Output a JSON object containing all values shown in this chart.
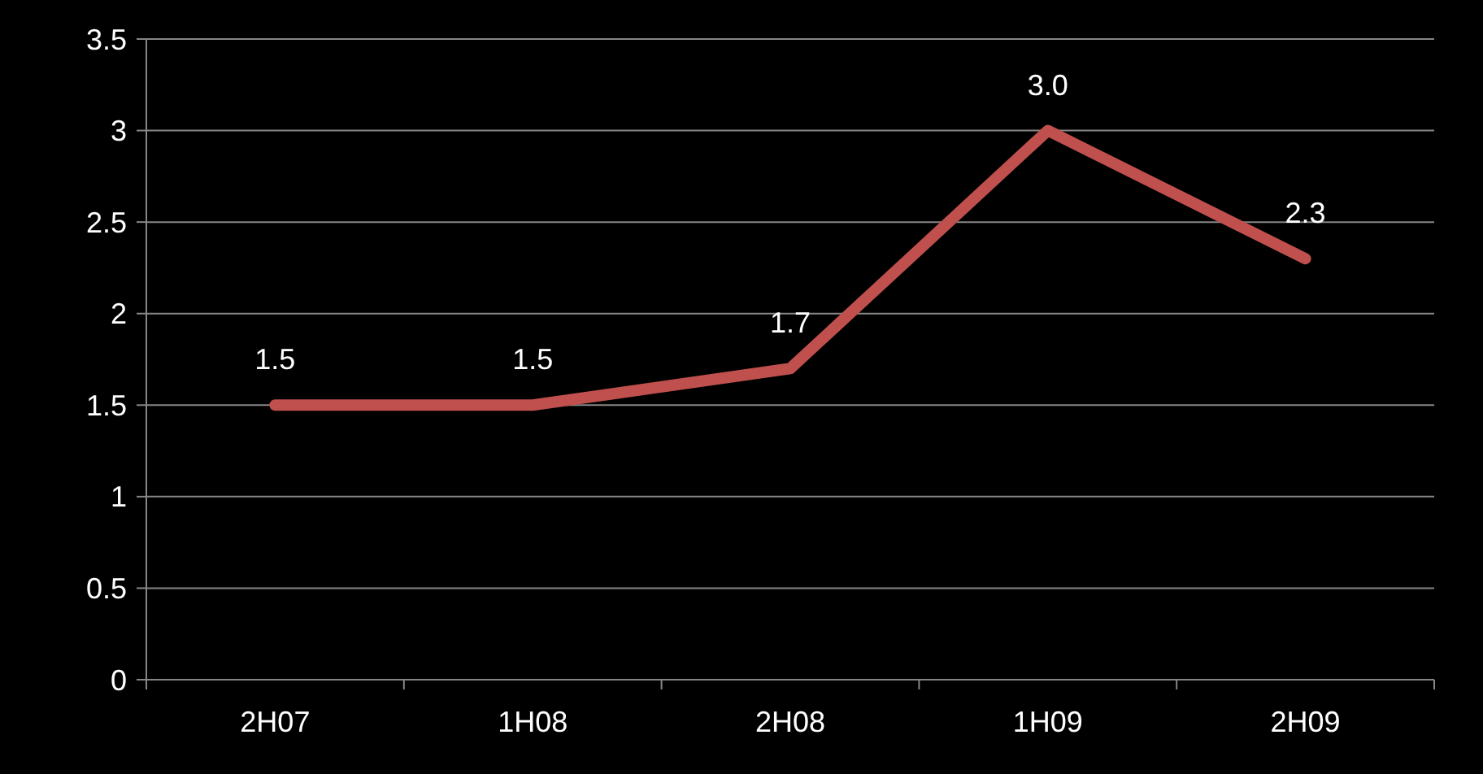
{
  "chart_data": {
    "type": "line",
    "categories": [
      "2H07",
      "1H08",
      "2H08",
      "1H09",
      "2H09"
    ],
    "series": [
      {
        "color": "#c0504d",
        "values": [
          1.5,
          1.5,
          1.7,
          3.0,
          2.3
        ],
        "value_labels": [
          "1.5",
          "1.5",
          "1.7",
          "3.0",
          "2.3"
        ]
      }
    ],
    "ylim": [
      0,
      3.5
    ],
    "yticks": [
      0,
      0.5,
      1,
      1.5,
      2,
      2.5,
      3,
      3.5
    ],
    "grid": "y",
    "marker": "none",
    "line_style": "solid"
  }
}
